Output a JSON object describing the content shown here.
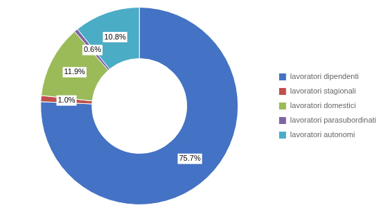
{
  "chart_data": {
    "type": "doughnut",
    "categories": [
      "lavoratori dipendenti",
      "lavoratori stagionali",
      "lavoratori domestici",
      "lavoratori parasubordinati",
      "lavoratori autonomi"
    ],
    "values": [
      75.7,
      1.0,
      11.9,
      0.6,
      10.8
    ],
    "value_labels": [
      "75.7%",
      "1.0%",
      "11.9%",
      "0.6%",
      "10.8%"
    ],
    "colors": [
      "#4472C4",
      "#C0504D",
      "#9BBB59",
      "#8064A2",
      "#4BACC6"
    ],
    "data_labels": true,
    "legend": "right"
  }
}
